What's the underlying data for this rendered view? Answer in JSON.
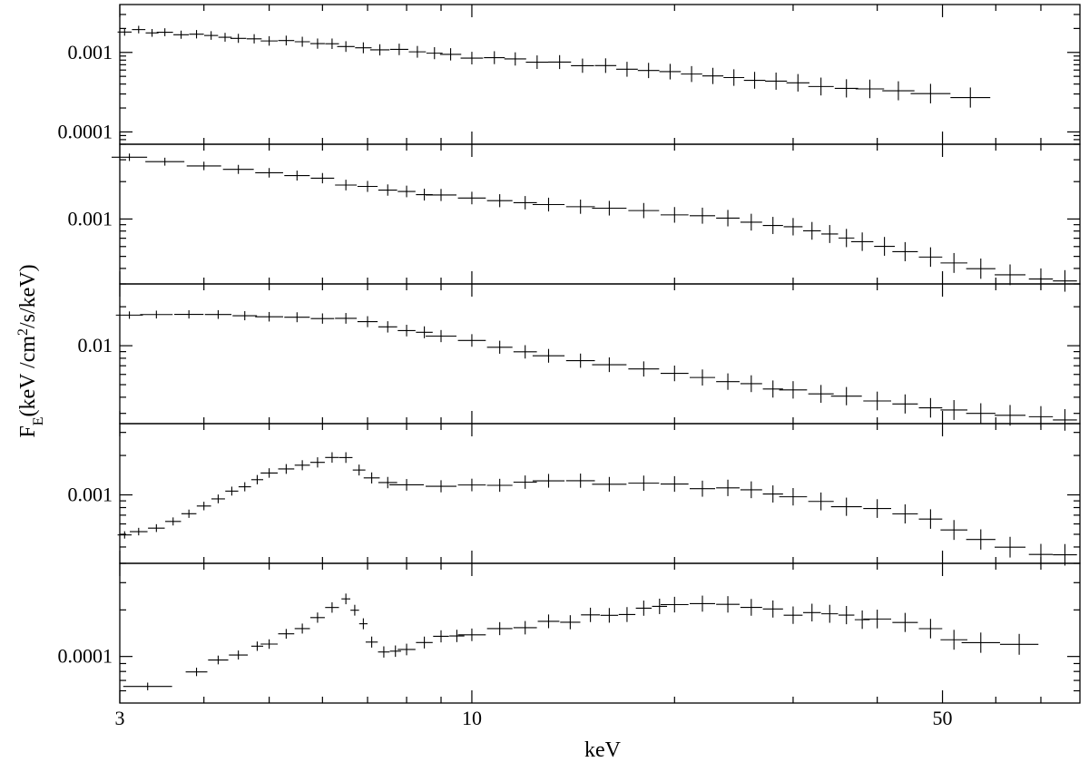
{
  "chart_data": {
    "type": "scatter",
    "xlabel": "keV",
    "ylabel": "F_E (keV /cm^2/s/keV)",
    "ylabel_parts": {
      "main": "F",
      "sub": "E",
      "pre": "(keV /cm",
      "sup": "2",
      "post": "/s/keV)"
    },
    "x_scale": "log",
    "y_scale": "log",
    "xlim": [
      3,
      80
    ],
    "x_tick_labels": [
      "3",
      "10",
      "50"
    ],
    "x_ticks": [
      3,
      10,
      50
    ],
    "x_minor_ticks": [
      4,
      5,
      6,
      7,
      8,
      9,
      20,
      30,
      40,
      60,
      70
    ],
    "panels": [
      {
        "ylim": [
          7e-05,
          0.004
        ],
        "y_ticks": [
          0.001,
          0.0001
        ],
        "y_tick_labels": [
          "0.001",
          "0.0001"
        ],
        "shape": "powerlaw_steep",
        "points": [
          [
            3.05,
            0.00185
          ],
          [
            3.2,
            0.0019
          ],
          [
            3.35,
            0.00175
          ],
          [
            3.5,
            0.0018
          ],
          [
            3.7,
            0.0017
          ],
          [
            3.9,
            0.00165
          ],
          [
            4.1,
            0.0016
          ],
          [
            4.3,
            0.00155
          ],
          [
            4.5,
            0.0015
          ],
          [
            4.75,
            0.00148
          ],
          [
            5.0,
            0.00145
          ],
          [
            5.3,
            0.0014
          ],
          [
            5.6,
            0.00135
          ],
          [
            5.9,
            0.0013
          ],
          [
            6.2,
            0.00125
          ],
          [
            6.5,
            0.0012
          ],
          [
            6.9,
            0.00115
          ],
          [
            7.3,
            0.0011
          ],
          [
            7.8,
            0.00105
          ],
          [
            8.3,
            0.001
          ],
          [
            8.8,
            0.00095
          ],
          [
            9.3,
            0.00092
          ],
          [
            10.0,
            0.00088
          ],
          [
            10.8,
            0.00085
          ],
          [
            11.6,
            0.0008
          ],
          [
            12.5,
            0.00077
          ],
          [
            13.5,
            0.00074
          ],
          [
            14.6,
            0.0007
          ],
          [
            15.8,
            0.00066
          ],
          [
            17.0,
            0.00063
          ],
          [
            18.3,
            0.0006
          ],
          [
            19.7,
            0.00057
          ],
          [
            21.2,
            0.00054
          ],
          [
            22.8,
            0.00051
          ],
          [
            24.5,
            0.00048
          ],
          [
            26.3,
            0.00046
          ],
          [
            28.3,
            0.00043
          ],
          [
            30.5,
            0.0004
          ],
          [
            33.0,
            0.00038
          ],
          [
            36.0,
            0.00036
          ],
          [
            39.0,
            0.00034
          ],
          [
            43.0,
            0.00032
          ],
          [
            48.0,
            0.0003
          ],
          [
            55.0,
            0.00028
          ]
        ]
      },
      {
        "ylim": [
          0.0003,
          0.004
        ],
        "y_ticks": [
          0.001
        ],
        "y_tick_labels": [
          "0.001"
        ],
        "shape": "powerlaw_dense",
        "points": [
          [
            3.1,
            0.0031
          ],
          [
            3.5,
            0.0029
          ],
          [
            4.0,
            0.0027
          ],
          [
            4.5,
            0.0025
          ],
          [
            5.0,
            0.0024
          ],
          [
            5.5,
            0.00225
          ],
          [
            6.0,
            0.0021
          ],
          [
            6.5,
            0.0019
          ],
          [
            7.0,
            0.0018
          ],
          [
            7.5,
            0.0017
          ],
          [
            8.0,
            0.00165
          ],
          [
            8.5,
            0.0016
          ],
          [
            9.0,
            0.00155
          ],
          [
            10.0,
            0.00145
          ],
          [
            11.0,
            0.0014
          ],
          [
            12.0,
            0.00135
          ],
          [
            13.0,
            0.0013
          ],
          [
            14.5,
            0.00125
          ],
          [
            16.0,
            0.0012
          ],
          [
            18.0,
            0.00115
          ],
          [
            20.0,
            0.0011
          ],
          [
            22.0,
            0.00105
          ],
          [
            24.0,
            0.001
          ],
          [
            26.0,
            0.00095
          ],
          [
            28.0,
            0.0009
          ],
          [
            30.0,
            0.00085
          ],
          [
            32.0,
            0.0008
          ],
          [
            34.0,
            0.00075
          ],
          [
            36.0,
            0.0007
          ],
          [
            38.0,
            0.00065
          ],
          [
            41.0,
            0.0006
          ],
          [
            44.0,
            0.00055
          ],
          [
            48.0,
            0.0005
          ],
          [
            52.0,
            0.00045
          ],
          [
            57.0,
            0.0004
          ],
          [
            63.0,
            0.00035
          ],
          [
            70.0,
            0.00033
          ],
          [
            76.0,
            0.00032
          ]
        ]
      },
      {
        "ylim": [
          0.0025,
          0.03
        ],
        "y_ticks": [
          0.01
        ],
        "y_tick_labels": [
          "0.01"
        ],
        "shape": "flat_then_decline",
        "points": [
          [
            3.1,
            0.017
          ],
          [
            3.4,
            0.0172
          ],
          [
            3.8,
            0.0173
          ],
          [
            4.2,
            0.0172
          ],
          [
            4.6,
            0.017
          ],
          [
            5.0,
            0.0168
          ],
          [
            5.5,
            0.0165
          ],
          [
            6.0,
            0.0162
          ],
          [
            6.5,
            0.016
          ],
          [
            7.0,
            0.0152
          ],
          [
            7.5,
            0.0142
          ],
          [
            8.0,
            0.0132
          ],
          [
            8.5,
            0.0125
          ],
          [
            9.0,
            0.0118
          ],
          [
            10.0,
            0.0108
          ],
          [
            11.0,
            0.0099
          ],
          [
            12.0,
            0.0091
          ],
          [
            13.0,
            0.0085
          ],
          [
            14.5,
            0.0078
          ],
          [
            16.0,
            0.0072
          ],
          [
            18.0,
            0.0066
          ],
          [
            20.0,
            0.0061
          ],
          [
            22.0,
            0.0057
          ],
          [
            24.0,
            0.0053
          ],
          [
            26.0,
            0.005
          ],
          [
            28.0,
            0.0047
          ],
          [
            30.0,
            0.0045
          ],
          [
            33.0,
            0.0042
          ],
          [
            36.0,
            0.004
          ],
          [
            40.0,
            0.0037
          ],
          [
            44.0,
            0.0035
          ],
          [
            48.0,
            0.0033
          ],
          [
            52.0,
            0.0032
          ],
          [
            57.0,
            0.003
          ],
          [
            63.0,
            0.0029
          ],
          [
            70.0,
            0.0028
          ],
          [
            76.0,
            0.0027
          ]
        ]
      },
      {
        "ylim": [
          0.0003,
          0.0035
        ],
        "y_ticks": [
          0.001
        ],
        "y_tick_labels": [
          "0.001"
        ],
        "shape": "hump_then_plateau",
        "points": [
          [
            3.05,
            0.00048
          ],
          [
            3.2,
            0.00052
          ],
          [
            3.4,
            0.00057
          ],
          [
            3.6,
            0.00064
          ],
          [
            3.8,
            0.00072
          ],
          [
            4.0,
            0.00082
          ],
          [
            4.2,
            0.00095
          ],
          [
            4.4,
            0.00105
          ],
          [
            4.6,
            0.00118
          ],
          [
            4.8,
            0.0013
          ],
          [
            5.0,
            0.00142
          ],
          [
            5.3,
            0.00155
          ],
          [
            5.6,
            0.00168
          ],
          [
            5.9,
            0.00178
          ],
          [
            6.2,
            0.00188
          ],
          [
            6.5,
            0.0019
          ],
          [
            6.8,
            0.0016
          ],
          [
            7.1,
            0.0013
          ],
          [
            7.5,
            0.0012
          ],
          [
            8.0,
            0.00118
          ],
          [
            9.0,
            0.0012
          ],
          [
            10.0,
            0.00122
          ],
          [
            11.0,
            0.00122
          ],
          [
            12.0,
            0.00123
          ],
          [
            13.0,
            0.00124
          ],
          [
            14.5,
            0.00124
          ],
          [
            16.0,
            0.00122
          ],
          [
            18.0,
            0.0012
          ],
          [
            20.0,
            0.00117
          ],
          [
            22.0,
            0.00115
          ],
          [
            24.0,
            0.00113
          ],
          [
            26.0,
            0.0011
          ],
          [
            28.0,
            0.00105
          ],
          [
            30.0,
            0.00098
          ],
          [
            33.0,
            0.0009
          ],
          [
            36.0,
            0.00083
          ],
          [
            40.0,
            0.00076
          ],
          [
            44.0,
            0.0007
          ],
          [
            48.0,
            0.00063
          ],
          [
            52.0,
            0.00055
          ],
          [
            57.0,
            0.00045
          ],
          [
            63.0,
            0.0004
          ],
          [
            70.0,
            0.00036
          ],
          [
            76.0,
            0.00034
          ]
        ]
      },
      {
        "ylim": [
          5e-05,
          0.0004
        ],
        "y_ticks": [
          0.0001
        ],
        "y_tick_labels": [
          "0.0001"
        ],
        "shape": "hump_then_rise",
        "points": [
          [
            3.3,
            6.5e-05
          ],
          [
            3.9,
            8e-05
          ],
          [
            4.2,
            9.7e-05
          ],
          [
            4.5,
            0.000105
          ],
          [
            4.8,
            0.000115
          ],
          [
            5.0,
            0.00012
          ],
          [
            5.3,
            0.000135
          ],
          [
            5.6,
            0.000155
          ],
          [
            5.9,
            0.000175
          ],
          [
            6.2,
            0.000205
          ],
          [
            6.5,
            0.000232
          ],
          [
            6.7,
            0.0002
          ],
          [
            6.9,
            0.00016
          ],
          [
            7.1,
            0.000125
          ],
          [
            7.4,
            0.000105
          ],
          [
            7.7,
            0.00011
          ],
          [
            8.0,
            0.000115
          ],
          [
            8.5,
            0.00012
          ],
          [
            9.0,
            0.00013
          ],
          [
            9.5,
            0.000135
          ],
          [
            10.0,
            0.00014
          ],
          [
            11.0,
            0.000148
          ],
          [
            12.0,
            0.000155
          ],
          [
            13.0,
            0.000165
          ],
          [
            14.0,
            0.000172
          ],
          [
            15.0,
            0.00018
          ],
          [
            16.0,
            0.000188
          ],
          [
            17.0,
            0.000192
          ],
          [
            18.0,
            0.000198
          ],
          [
            19.0,
            0.000205
          ],
          [
            20.0,
            0.00021
          ],
          [
            22.0,
            0.00022
          ],
          [
            24.0,
            0.000225
          ],
          [
            26.0,
            0.00021
          ],
          [
            28.0,
            0.0002
          ],
          [
            30.0,
            0.00019
          ],
          [
            32.0,
            0.00019
          ],
          [
            34.0,
            0.000185
          ],
          [
            36.0,
            0.00018
          ],
          [
            38.0,
            0.000175
          ],
          [
            40.0,
            0.00017
          ],
          [
            44.0,
            0.00016
          ],
          [
            48.0,
            0.00015
          ],
          [
            52.0,
            0.00013
          ],
          [
            57.0,
            0.00012
          ],
          [
            65.0,
            0.00012
          ]
        ]
      }
    ]
  }
}
